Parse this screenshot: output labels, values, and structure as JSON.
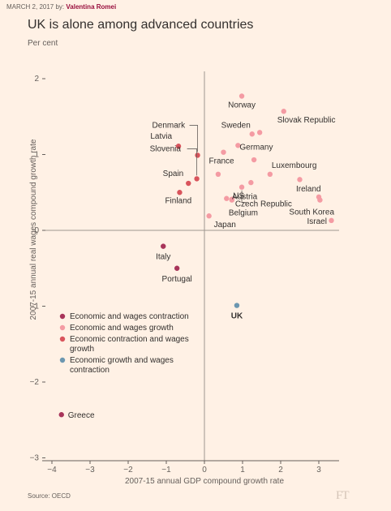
{
  "byline": {
    "date": "MARCH 2, 2017",
    "by": "by:",
    "author": "Valentina Romei"
  },
  "title": "UK is alone among advanced countries",
  "subtitle": "Per cent",
  "source": "Source: OECD",
  "logo": "FT",
  "colors": {
    "background": "#fff1e5",
    "economic_and_wages_contraction": "#a8345a",
    "economic_and_wages_growth": "#f49ba3",
    "economic_contraction_wages_growth": "#d9545c",
    "economic_growth_wages_contraction": "#6c97b0",
    "axis": "#66605c",
    "grid": "#e8d8ca"
  },
  "chart_data": {
    "type": "scatter",
    "xlabel": "2007-15 annual GDP compound growth rate",
    "ylabel": "2007-15 annual real wages compound growth rate",
    "xlim": [
      -4,
      3.3
    ],
    "ylim": [
      -3,
      2.1
    ],
    "xticks": [
      -4,
      -3,
      -2,
      -1,
      0,
      1,
      2,
      3
    ],
    "yticks": [
      -3,
      -2,
      -1,
      0,
      1,
      2
    ],
    "grid": false,
    "legend_position": "lower-left",
    "legend": [
      {
        "key": "economic_and_wages_contraction",
        "label": "Economic and wages contraction"
      },
      {
        "key": "economic_and_wages_growth",
        "label": "Economic and wages growth"
      },
      {
        "key": "economic_contraction_wages_growth",
        "label": "Economic contraction and wages growth"
      },
      {
        "key": "economic_growth_wages_contraction",
        "label": "Economic growth and wages contraction"
      }
    ],
    "points": [
      {
        "label": "Norway",
        "x": 0.98,
        "y": 1.77,
        "group": "economic_and_wages_growth"
      },
      {
        "label": "Slovak Republic",
        "x": 2.08,
        "y": 1.57,
        "group": "economic_and_wages_growth"
      },
      {
        "label": "Sweden",
        "x": 1.25,
        "y": 1.27,
        "group": "economic_and_wages_growth"
      },
      {
        "label": "",
        "x": 1.45,
        "y": 1.29,
        "group": "economic_and_wages_growth"
      },
      {
        "label": "Germany",
        "x": 0.88,
        "y": 1.12,
        "group": "economic_and_wages_growth"
      },
      {
        "label": "France",
        "x": 0.5,
        "y": 1.03,
        "group": "economic_and_wages_growth"
      },
      {
        "label": "",
        "x": 1.3,
        "y": 0.93,
        "group": "economic_and_wages_growth"
      },
      {
        "label": "Luxembourg",
        "x": 1.72,
        "y": 0.74,
        "group": "economic_and_wages_growth"
      },
      {
        "label": "",
        "x": 0.36,
        "y": 0.74,
        "group": "economic_and_wages_growth"
      },
      {
        "label": "",
        "x": 2.5,
        "y": 0.67,
        "group": "economic_and_wages_growth"
      },
      {
        "label": "",
        "x": 1.22,
        "y": 0.63,
        "group": "economic_and_wages_growth"
      },
      {
        "label": "Austria",
        "x": 0.98,
        "y": 0.57,
        "group": "economic_and_wages_growth"
      },
      {
        "label": "US",
        "x": 0.58,
        "y": 0.42,
        "group": "economic_and_wages_growth"
      },
      {
        "label": "Czech Republic",
        "x": 0.72,
        "y": 0.41,
        "group": "economic_and_wages_growth"
      },
      {
        "label": "Ireland",
        "x": 3.0,
        "y": 0.44,
        "group": "economic_and_wages_growth"
      },
      {
        "label": "South Korea",
        "x": 3.03,
        "y": 0.4,
        "group": "economic_and_wages_growth"
      },
      {
        "label": "Belgium",
        "x": 0.72,
        "y": 0.4,
        "group": "economic_and_wages_growth"
      },
      {
        "label": "Israel",
        "x": 3.33,
        "y": 0.13,
        "group": "economic_and_wages_growth"
      },
      {
        "label": "Japan",
        "x": 0.12,
        "y": 0.19,
        "group": "economic_and_wages_growth"
      },
      {
        "label": "Denmark",
        "x": -0.18,
        "y": 0.99,
        "group": "economic_contraction_wages_growth"
      },
      {
        "label": "Latvia",
        "x": -0.68,
        "y": 1.11,
        "group": "economic_contraction_wages_growth"
      },
      {
        "label": "Slovenia",
        "x": -0.2,
        "y": 0.68,
        "group": "economic_contraction_wages_growth"
      },
      {
        "label": "Spain",
        "x": -0.42,
        "y": 0.62,
        "group": "economic_contraction_wages_growth"
      },
      {
        "label": "Finland",
        "x": -0.65,
        "y": 0.5,
        "group": "economic_contraction_wages_growth"
      },
      {
        "label": "Italy",
        "x": -1.08,
        "y": -0.21,
        "group": "economic_and_wages_contraction"
      },
      {
        "label": "Portugal",
        "x": -0.72,
        "y": -0.5,
        "group": "economic_and_wages_contraction"
      },
      {
        "label": "Greece",
        "x": -3.75,
        "y": -2.43,
        "group": "economic_and_wages_contraction"
      },
      {
        "label": "UK",
        "x": 0.85,
        "y": -0.99,
        "group": "economic_growth_wages_contraction"
      }
    ]
  }
}
